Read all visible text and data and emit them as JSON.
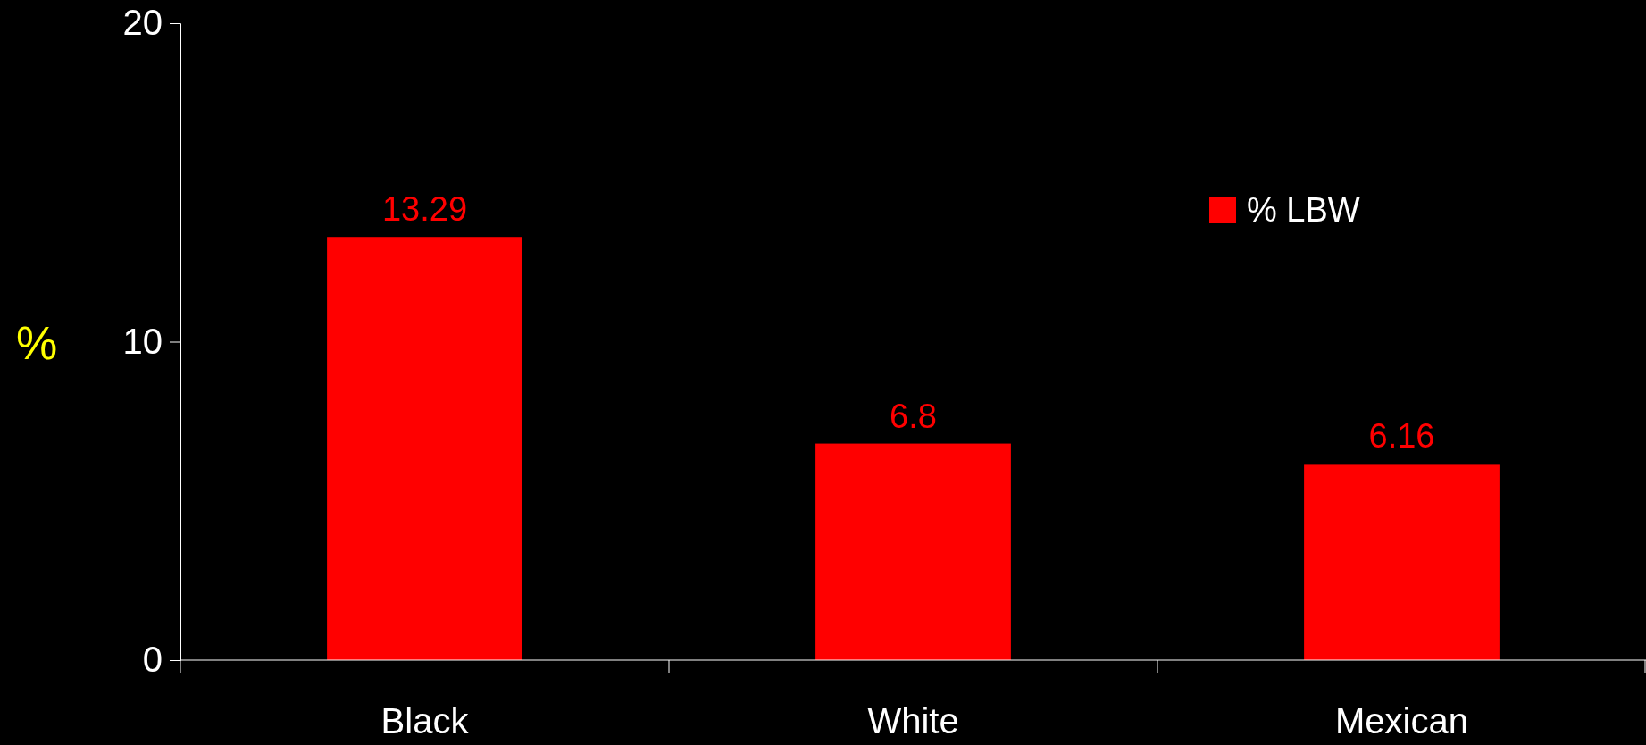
{
  "chart_data": {
    "type": "bar",
    "categories": [
      "Black",
      "White",
      "Mexican"
    ],
    "series": [
      {
        "name": "% LBW",
        "color": "#ff0000",
        "values": [
          13.29,
          6.8,
          6.16
        ]
      }
    ],
    "ylabel": "%",
    "ylim": [
      0,
      20
    ],
    "yticks": [
      0,
      10,
      20
    ],
    "data_labels": true,
    "legend": "top right",
    "grid": false
  }
}
